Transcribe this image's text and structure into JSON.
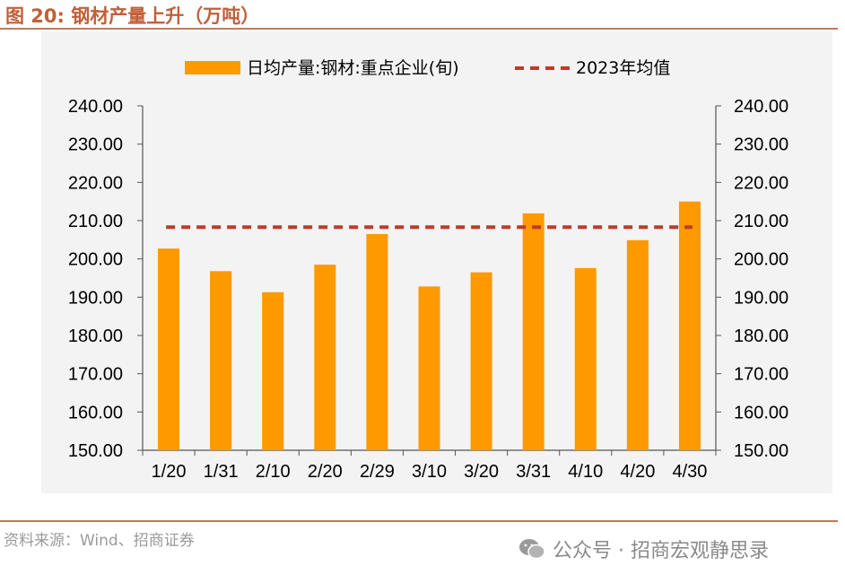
{
  "figure": {
    "label": "图 20:",
    "title": "钢材产量上升（万吨）"
  },
  "chart_data": {
    "type": "bar",
    "categories": [
      "1/20",
      "1/31",
      "2/10",
      "2/20",
      "2/29",
      "3/10",
      "3/20",
      "3/31",
      "4/10",
      "4/20",
      "4/30"
    ],
    "series": [
      {
        "name": "日均产量:钢材:重点企业(旬)",
        "kind": "bar",
        "color": "#ff9900",
        "values": [
          202.7,
          196.8,
          191.3,
          198.5,
          206.5,
          192.8,
          196.5,
          211.9,
          197.6,
          204.9,
          215.0
        ]
      },
      {
        "name": "2023年均值",
        "kind": "dashed-line",
        "color": "#c0392b",
        "value": 208.3
      }
    ],
    "ylim": [
      150,
      240
    ],
    "yticks": [
      "150.00",
      "160.00",
      "170.00",
      "180.00",
      "190.00",
      "200.00",
      "210.00",
      "220.00",
      "230.00",
      "240.00"
    ],
    "y2ticks": [
      "150.00",
      "160.00",
      "170.00",
      "180.00",
      "190.00",
      "200.00",
      "210.00",
      "220.00",
      "230.00",
      "240.00"
    ],
    "legend_position": "top"
  },
  "source": "资料来源：Wind、招商证券",
  "watermark": "公众号 · 招商宏观静思录"
}
